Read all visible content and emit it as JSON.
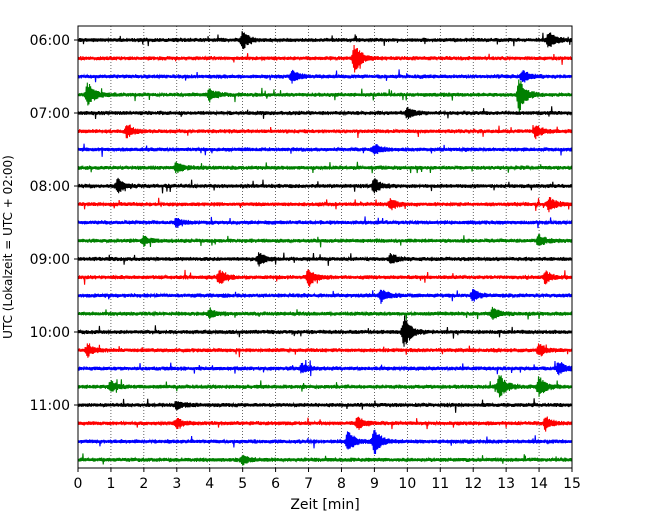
{
  "chart_data": {
    "type": "line",
    "title": "",
    "xlabel": "Zeit  [min]",
    "ylabel": "UTC (Lokalzeit = UTC + 02:00)",
    "xlim": [
      0,
      15
    ],
    "x_ticks": [
      0,
      1,
      2,
      3,
      4,
      5,
      6,
      7,
      8,
      9,
      10,
      11,
      12,
      13,
      14,
      15
    ],
    "y_tick_labels": [
      "06:00",
      "07:00",
      "08:00",
      "09:00",
      "10:00",
      "11:00"
    ],
    "y_tick_rows": [
      0,
      4,
      8,
      12,
      16,
      20
    ],
    "grid": "vertical dotted at each minute",
    "trace_interval_minutes": 15,
    "color_cycle": [
      "#000000",
      "#ff0000",
      "#0000ff",
      "#008000"
    ],
    "traces": [
      {
        "start": "06:00",
        "color": "#000000",
        "events": [
          {
            "t": 5.0,
            "amp": 1.0
          },
          {
            "t": 14.3,
            "amp": 1.0
          }
        ]
      },
      {
        "start": "06:15",
        "color": "#ff0000",
        "events": [
          {
            "t": 8.4,
            "amp": 1.6
          }
        ]
      },
      {
        "start": "06:30",
        "color": "#0000ff",
        "events": [
          {
            "t": 6.5,
            "amp": 0.8
          },
          {
            "t": 13.5,
            "amp": 0.7
          }
        ]
      },
      {
        "start": "06:45",
        "color": "#008000",
        "events": [
          {
            "t": 0.3,
            "amp": 1.3
          },
          {
            "t": 13.4,
            "amp": 1.8
          },
          {
            "t": 4.0,
            "amp": 0.7
          }
        ]
      },
      {
        "start": "07:00",
        "color": "#000000",
        "events": [
          {
            "t": 10.0,
            "amp": 0.6
          }
        ]
      },
      {
        "start": "07:15",
        "color": "#ff0000",
        "events": [
          {
            "t": 1.5,
            "amp": 0.7
          },
          {
            "t": 13.9,
            "amp": 0.7
          }
        ]
      },
      {
        "start": "07:30",
        "color": "#0000ff",
        "events": [
          {
            "t": 9.0,
            "amp": 0.6
          }
        ]
      },
      {
        "start": "07:45",
        "color": "#008000",
        "events": [
          {
            "t": 3.0,
            "amp": 0.6
          }
        ]
      },
      {
        "start": "08:00",
        "color": "#000000",
        "events": [
          {
            "t": 1.2,
            "amp": 0.8
          },
          {
            "t": 9.0,
            "amp": 0.8
          }
        ]
      },
      {
        "start": "08:15",
        "color": "#ff0000",
        "events": [
          {
            "t": 9.5,
            "amp": 0.6
          },
          {
            "t": 14.3,
            "amp": 0.8
          }
        ]
      },
      {
        "start": "08:30",
        "color": "#0000ff",
        "events": [
          {
            "t": 3.0,
            "amp": 0.5
          }
        ]
      },
      {
        "start": "08:45",
        "color": "#008000",
        "events": [
          {
            "t": 2.0,
            "amp": 0.5
          },
          {
            "t": 14.0,
            "amp": 0.6
          }
        ]
      },
      {
        "start": "09:00",
        "color": "#000000",
        "events": [
          {
            "t": 5.5,
            "amp": 0.7
          },
          {
            "t": 9.5,
            "amp": 0.6
          }
        ]
      },
      {
        "start": "09:15",
        "color": "#ff0000",
        "events": [
          {
            "t": 4.3,
            "amp": 0.9
          },
          {
            "t": 7.0,
            "amp": 1.0
          },
          {
            "t": 14.2,
            "amp": 0.7
          }
        ]
      },
      {
        "start": "09:30",
        "color": "#0000ff",
        "events": [
          {
            "t": 9.2,
            "amp": 0.8
          },
          {
            "t": 12.0,
            "amp": 0.6
          }
        ]
      },
      {
        "start": "09:45",
        "color": "#008000",
        "events": [
          {
            "t": 4.0,
            "amp": 0.5
          },
          {
            "t": 12.6,
            "amp": 0.6
          }
        ]
      },
      {
        "start": "10:00",
        "color": "#000000",
        "events": [
          {
            "t": 9.9,
            "amp": 2.0
          }
        ]
      },
      {
        "start": "10:15",
        "color": "#ff0000",
        "events": [
          {
            "t": 0.3,
            "amp": 0.7
          },
          {
            "t": 14.0,
            "amp": 0.7
          }
        ]
      },
      {
        "start": "10:30",
        "color": "#0000ff",
        "events": [
          {
            "t": 6.8,
            "amp": 0.5
          },
          {
            "t": 14.6,
            "amp": 0.8
          }
        ]
      },
      {
        "start": "10:45",
        "color": "#008000",
        "events": [
          {
            "t": 12.8,
            "amp": 1.4
          },
          {
            "t": 14.0,
            "amp": 1.1
          },
          {
            "t": 1.0,
            "amp": 0.6
          }
        ]
      },
      {
        "start": "11:00",
        "color": "#000000",
        "events": [
          {
            "t": 3.0,
            "amp": 0.5
          }
        ]
      },
      {
        "start": "11:15",
        "color": "#ff0000",
        "events": [
          {
            "t": 3.0,
            "amp": 0.6
          },
          {
            "t": 8.5,
            "amp": 0.7
          },
          {
            "t": 14.2,
            "amp": 0.7
          }
        ]
      },
      {
        "start": "11:30",
        "color": "#0000ff",
        "events": [
          {
            "t": 9.0,
            "amp": 1.5
          },
          {
            "t": 8.2,
            "amp": 1.2
          }
        ]
      },
      {
        "start": "11:45",
        "color": "#008000",
        "events": [
          {
            "t": 5.0,
            "amp": 0.5
          }
        ]
      }
    ]
  }
}
